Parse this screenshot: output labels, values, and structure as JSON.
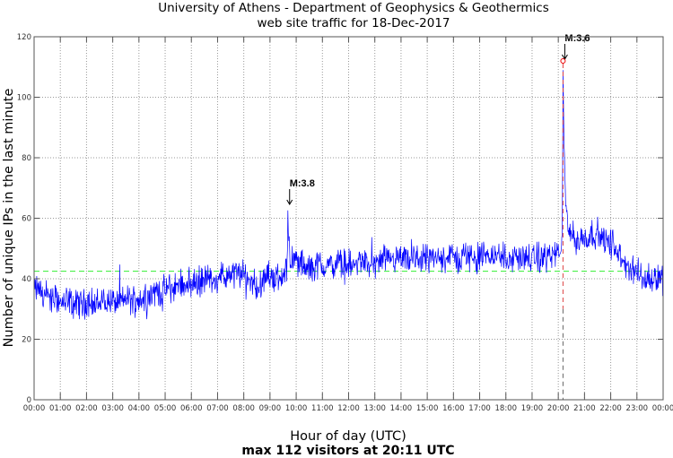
{
  "chart_data": {
    "type": "line",
    "title": "University of Athens - Department of Geophysics & Geothermics",
    "subtitle": "web site traffic for 18-Dec-2017",
    "xlabel": "Hour of day (UTC)",
    "ylabel": "Number of unique IPs in the last minute",
    "footer": "max 112 visitors at 20:11 UTC",
    "xlim_hours": [
      0,
      24
    ],
    "ylim": [
      0,
      120
    ],
    "grid": true,
    "x_ticks": [
      "00:00",
      "01:00",
      "02:00",
      "03:00",
      "04:00",
      "05:00",
      "06:00",
      "07:00",
      "08:00",
      "09:00",
      "10:00",
      "11:00",
      "12:00",
      "13:00",
      "14:00",
      "15:00",
      "16:00",
      "17:00",
      "18:00",
      "19:00",
      "20:00",
      "21:00",
      "22:00",
      "23:00",
      "00:00"
    ],
    "y_ticks": [
      0,
      20,
      40,
      60,
      80,
      100,
      120
    ],
    "mean_line": {
      "value": 42.5,
      "color": "#33ee33"
    },
    "series": [
      {
        "name": "visitors per minute (10-min baseline, noisy)",
        "color": "#0000ff",
        "step_minutes": 10,
        "noise_amplitude": 6,
        "values": [
          36,
          37,
          35,
          34,
          33,
          34,
          32,
          32,
          33,
          31,
          32,
          32,
          32,
          33,
          31,
          32,
          33,
          32,
          33,
          32,
          32,
          34,
          33,
          33,
          33,
          34,
          35,
          35,
          36,
          36,
          36,
          37,
          37,
          38,
          38,
          39,
          38,
          39,
          39,
          40,
          40,
          40,
          40,
          41,
          40,
          41,
          42,
          41,
          41,
          40,
          39,
          37,
          38,
          40,
          41,
          41,
          40,
          42,
          42,
          46,
          46,
          45,
          44,
          43,
          44,
          45,
          44,
          45,
          44,
          45,
          45,
          45,
          45,
          44,
          45,
          46,
          45,
          44,
          45,
          45,
          46,
          45,
          46,
          46,
          46,
          46,
          45,
          47,
          46,
          47,
          47,
          47,
          46,
          47,
          47,
          48,
          47,
          46,
          47,
          48,
          47,
          47,
          47,
          48,
          47,
          48,
          48,
          47,
          47,
          46,
          47,
          48,
          47,
          47,
          46,
          47,
          47,
          47,
          48,
          48,
          48,
          49,
          56,
          55,
          52,
          53,
          54,
          54,
          55,
          55,
          53,
          52,
          52,
          50,
          47,
          45,
          44,
          43,
          42,
          41,
          40,
          40,
          40,
          41,
          40
        ]
      }
    ],
    "events": [
      {
        "label": "M:3.8",
        "time": "09:41",
        "hour": 9.68,
        "value": 64
      },
      {
        "label": "M:3.6",
        "time": "20:11",
        "hour": 20.18,
        "value": 112
      }
    ]
  }
}
